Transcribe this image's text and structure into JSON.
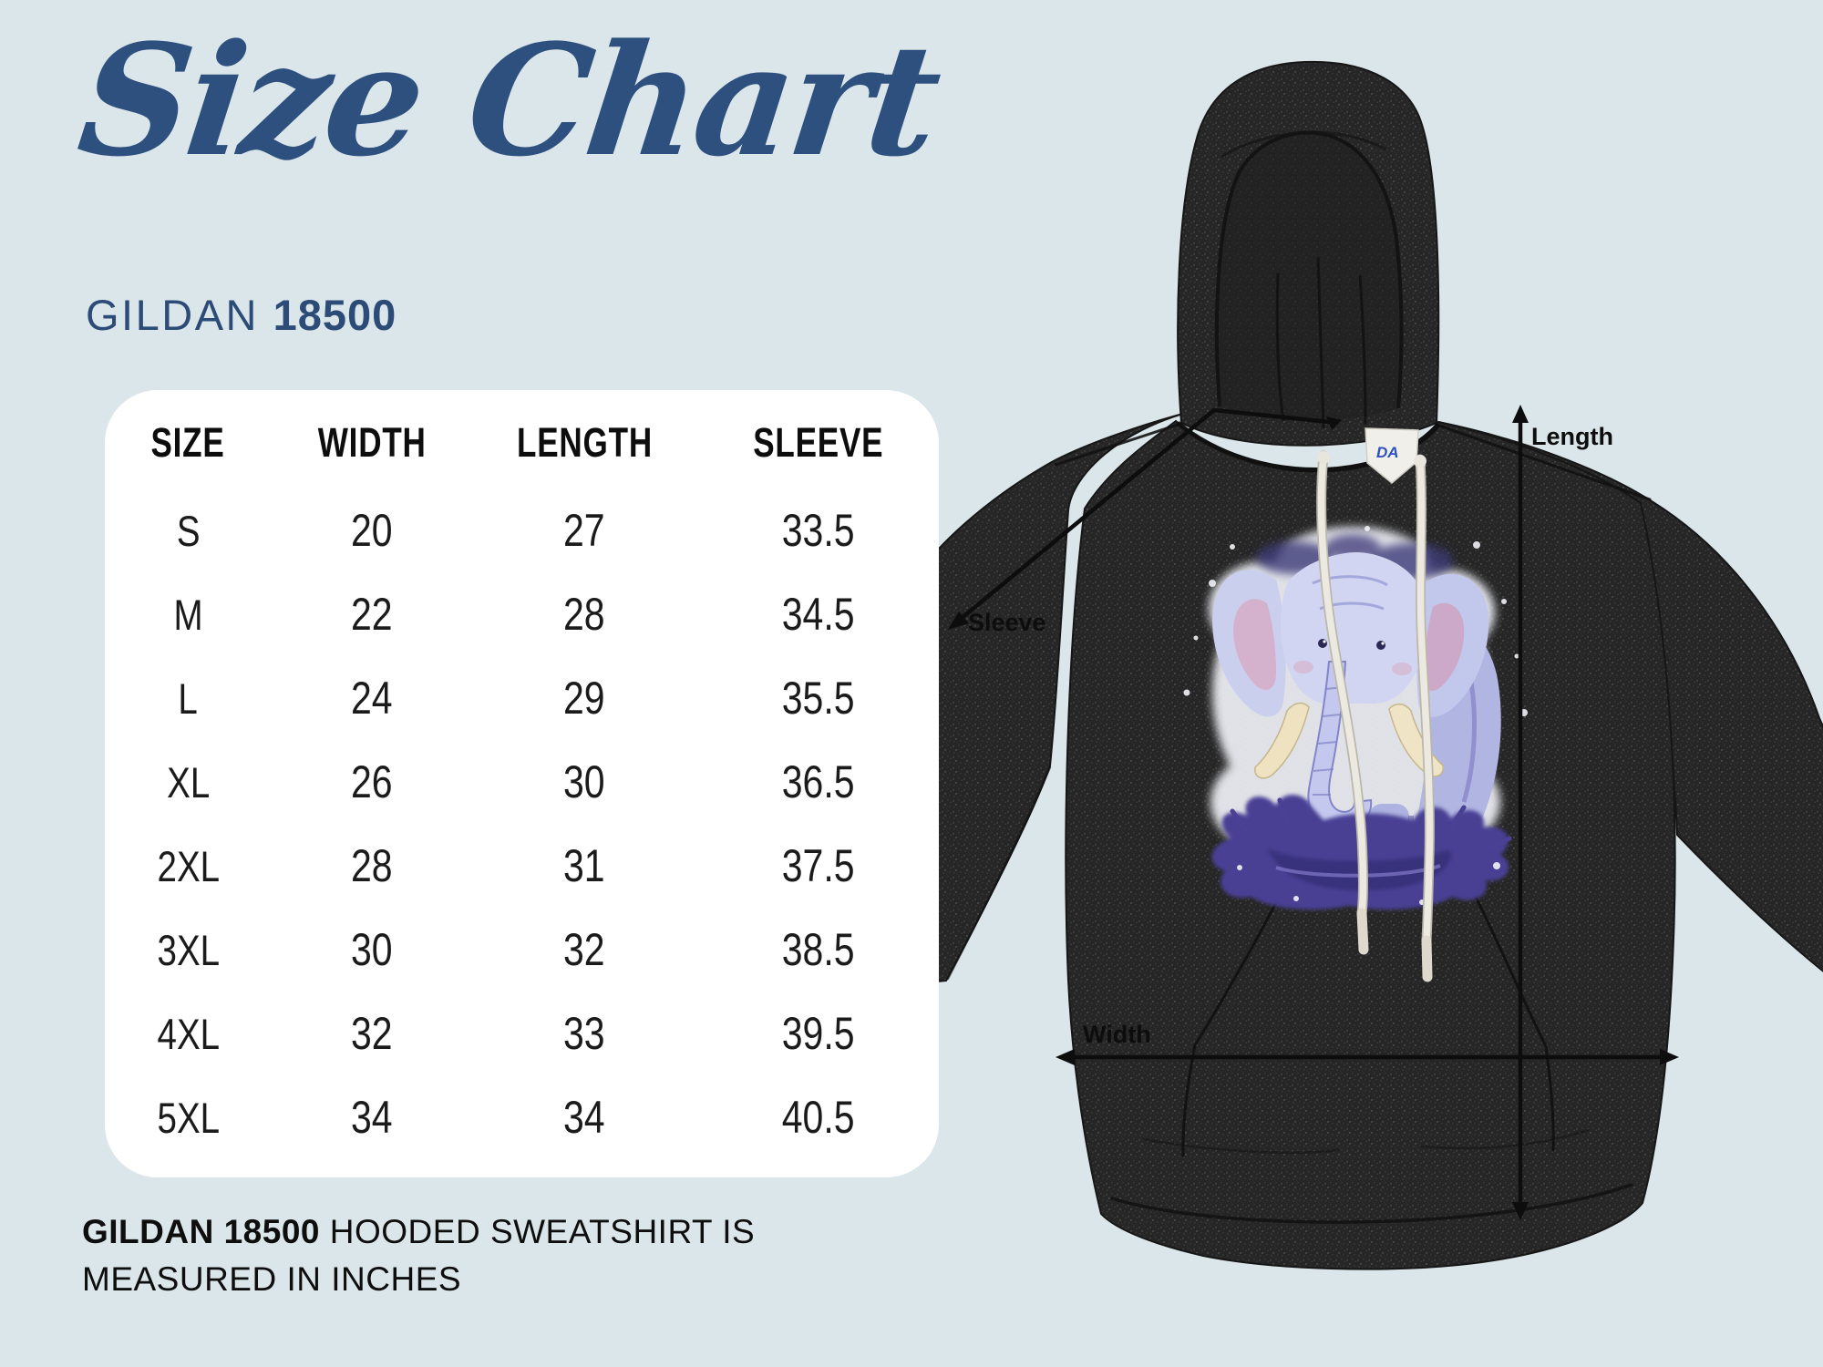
{
  "title": "Size Chart",
  "brand": {
    "name": "GILDAN",
    "model": "18500"
  },
  "size_table": {
    "headers": [
      "SIZE",
      "WIDTH",
      "LENGTH",
      "SLEEVE"
    ],
    "rows": [
      [
        "S",
        "20",
        "27",
        "33.5"
      ],
      [
        "M",
        "22",
        "28",
        "34.5"
      ],
      [
        "L",
        "24",
        "29",
        "35.5"
      ],
      [
        "XL",
        "26",
        "30",
        "36.5"
      ],
      [
        "2XL",
        "28",
        "31",
        "37.5"
      ],
      [
        "3XL",
        "30",
        "32",
        "38.5"
      ],
      [
        "4XL",
        "32",
        "33",
        "39.5"
      ],
      [
        "5XL",
        "34",
        "34",
        "40.5"
      ]
    ]
  },
  "note": {
    "bold": "GILDAN 18500",
    "text": "HOODED SWEATSHIRT IS MEASURED IN INCHES"
  },
  "measurements": {
    "length_label": "Length",
    "width_label": "Width",
    "sleeve_label": "Sleeve"
  },
  "hoodie": {
    "tag_text": "DA"
  },
  "colors": {
    "background": "#dbe6ea",
    "title_blue": "#2e507f",
    "brand_blue": "#2c4c77",
    "table_bg": "#ffffff",
    "table_text": "#1b1b1b",
    "note_text": "#0e0e0e",
    "arrow": "#0d0d0d",
    "hoodie_base": "#262626",
    "drawstring": "#ece9e0",
    "elephant_light": "#d2d5f1",
    "elephant_dark": "#4a4194",
    "tag_blue": "#2d4fc0"
  },
  "chart_data": {
    "type": "table",
    "title": "Size Chart",
    "subtitle": "GILDAN 18500",
    "columns": [
      "SIZE",
      "WIDTH",
      "LENGTH",
      "SLEEVE"
    ],
    "rows": [
      [
        "S",
        20,
        27,
        33.5
      ],
      [
        "M",
        22,
        28,
        34.5
      ],
      [
        "L",
        24,
        29,
        35.5
      ],
      [
        "XL",
        26,
        30,
        36.5
      ],
      [
        "2XL",
        28,
        31,
        37.5
      ],
      [
        "3XL",
        30,
        32,
        38.5
      ],
      [
        "4XL",
        32,
        33,
        39.5
      ],
      [
        "5XL",
        34,
        34,
        40.5
      ]
    ],
    "units": "inches",
    "note": "GILDAN 18500 HOODED SWEATSHIRT IS MEASURED IN INCHES"
  }
}
